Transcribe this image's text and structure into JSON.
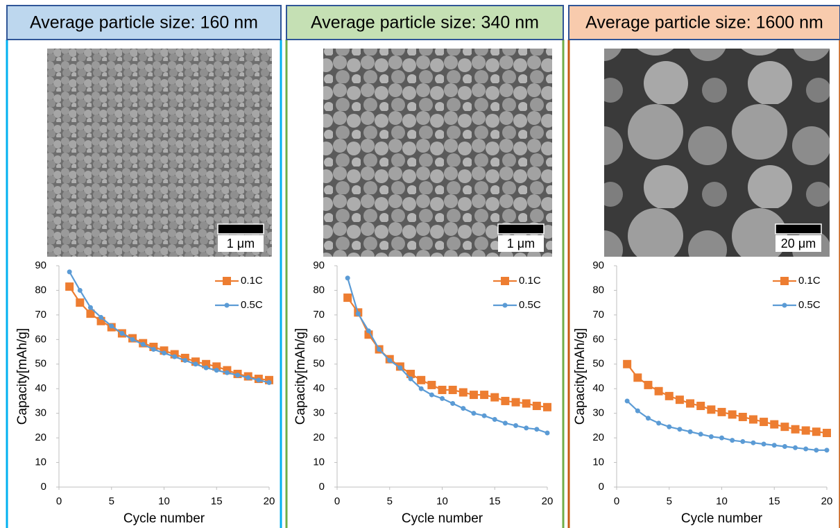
{
  "chart_data": [
    {
      "type": "line",
      "title": "Average particle size: 160 nm",
      "annotations": [
        "1 μm"
      ],
      "xlabel": "Cycle number",
      "ylabel": "Capacity[mAh/g]",
      "xlim": [
        0,
        20
      ],
      "xticks": [
        0,
        5,
        10,
        15,
        20
      ],
      "ylim": [
        0,
        90
      ],
      "yticks": [
        0,
        10,
        20,
        30,
        40,
        50,
        60,
        70,
        80,
        90
      ],
      "legend": "upper right",
      "x": [
        1,
        2,
        3,
        4,
        5,
        6,
        7,
        8,
        9,
        10,
        11,
        12,
        13,
        14,
        15,
        16,
        17,
        18,
        19,
        20
      ],
      "series": [
        {
          "name": "0.1C",
          "color": "#ed7d31",
          "marker": "square",
          "values": [
            81.5,
            75,
            70.5,
            67.5,
            65,
            62.5,
            60.5,
            58.5,
            57,
            55.5,
            54,
            52.5,
            51,
            50,
            49,
            47.5,
            46,
            45,
            44,
            43.5
          ]
        },
        {
          "name": "0.5C",
          "color": "#5b9bd5",
          "marker": "circle",
          "values": [
            87.5,
            80,
            73,
            69,
            65.5,
            62.5,
            60,
            58,
            56,
            54.5,
            53,
            51.5,
            50,
            48.5,
            47.5,
            46.5,
            45.5,
            44.5,
            43.5,
            42.5
          ]
        }
      ]
    },
    {
      "type": "line",
      "title": "Average particle size: 340 nm",
      "annotations": [
        "1 μm"
      ],
      "xlabel": "Cycle number",
      "ylabel": "Capacity[mAh/g]",
      "xlim": [
        0,
        20
      ],
      "xticks": [
        0,
        5,
        10,
        15,
        20
      ],
      "ylim": [
        0,
        90
      ],
      "yticks": [
        0,
        10,
        20,
        30,
        40,
        50,
        60,
        70,
        80,
        90
      ],
      "legend": "upper right",
      "x": [
        1,
        2,
        3,
        4,
        5,
        6,
        7,
        8,
        9,
        10,
        11,
        12,
        13,
        14,
        15,
        16,
        17,
        18,
        19,
        20
      ],
      "series": [
        {
          "name": "0.1C",
          "color": "#ed7d31",
          "marker": "square",
          "values": [
            77,
            71,
            62,
            56,
            52,
            49,
            46,
            43.5,
            41.5,
            39.5,
            39.5,
            38.5,
            37.5,
            37.5,
            36.5,
            35,
            34.5,
            34,
            33,
            32.5
          ]
        },
        {
          "name": "0.5C",
          "color": "#5b9bd5",
          "marker": "circle",
          "values": [
            85,
            70.5,
            63.5,
            56,
            51.5,
            48.5,
            44,
            40,
            37.5,
            36,
            34,
            32,
            30,
            29,
            27.5,
            26,
            25,
            24,
            23.5,
            22
          ]
        }
      ]
    },
    {
      "type": "line",
      "title": "Average particle size: 1600 nm",
      "annotations": [
        "20 μm"
      ],
      "xlabel": "Cycle number",
      "ylabel": "Capacity[mAh/g]",
      "xlim": [
        0,
        20
      ],
      "xticks": [
        0,
        5,
        10,
        15,
        20
      ],
      "ylim": [
        0,
        90
      ],
      "yticks": [
        0,
        10,
        20,
        30,
        40,
        50,
        60,
        70,
        80,
        90
      ],
      "legend": "upper right",
      "x": [
        1,
        2,
        3,
        4,
        5,
        6,
        7,
        8,
        9,
        10,
        11,
        12,
        13,
        14,
        15,
        16,
        17,
        18,
        19,
        20
      ],
      "series": [
        {
          "name": "0.1C",
          "color": "#ed7d31",
          "marker": "square",
          "values": [
            50,
            44.5,
            41.5,
            39,
            37,
            35.5,
            34,
            33,
            31.5,
            30.5,
            29.5,
            28.5,
            27.5,
            26.5,
            25.5,
            24.5,
            23.5,
            23,
            22.5,
            22
          ]
        },
        {
          "name": "0.5C",
          "color": "#5b9bd5",
          "marker": "circle",
          "values": [
            35,
            31,
            28,
            26,
            24.5,
            23.5,
            22.5,
            21.5,
            20.5,
            20,
            19,
            18.5,
            18,
            17.5,
            17,
            16.5,
            16,
            15.5,
            15,
            15
          ]
        }
      ]
    }
  ]
}
